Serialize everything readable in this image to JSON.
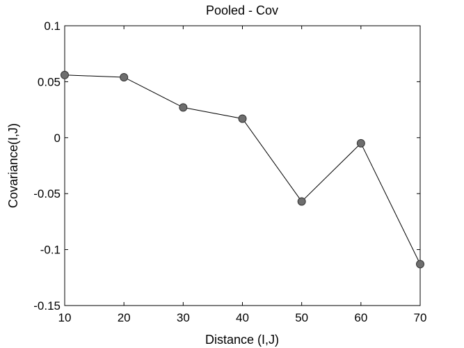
{
  "chart_data": {
    "type": "line",
    "title": "Pooled - Cov",
    "xlabel": "Distance (I,J)",
    "ylabel": "Covariance(I,J)",
    "xlim": [
      10,
      70
    ],
    "ylim": [
      -0.15,
      0.1
    ],
    "x_ticks": [
      10,
      20,
      30,
      40,
      50,
      60,
      70
    ],
    "y_ticks": [
      0.1,
      0.05,
      0,
      -0.05,
      -0.1,
      -0.15
    ],
    "x_tick_labels": [
      "10",
      "20",
      "30",
      "40",
      "50",
      "60",
      "70"
    ],
    "y_tick_labels": [
      "0.1",
      "0.05",
      "0",
      "-0.05",
      "-0.1",
      "-0.15"
    ],
    "grid": false,
    "series": [
      {
        "x": [
          10,
          20,
          30,
          40,
          50,
          60,
          70
        ],
        "y": [
          0.056,
          0.054,
          0.027,
          0.017,
          -0.057,
          -0.005,
          -0.113
        ],
        "line_color": "#000000",
        "marker": "circle",
        "marker_fill": "#6e6e6e",
        "marker_edge": "#333333"
      }
    ]
  }
}
